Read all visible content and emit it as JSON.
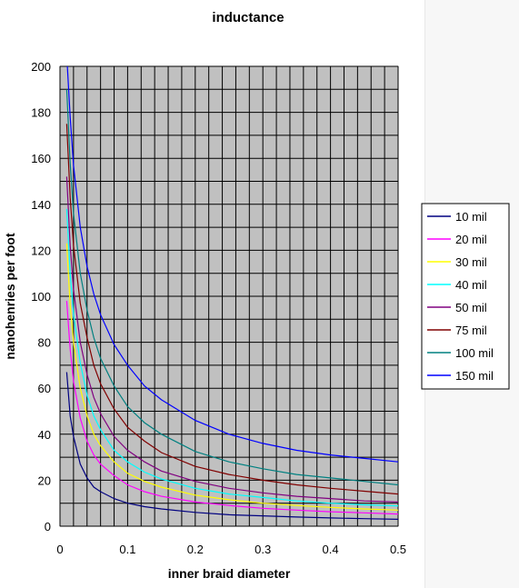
{
  "chart_data": {
    "type": "line",
    "title": "inductance",
    "xlabel": "inner braid diameter",
    "ylabel": "nanohenries per foot",
    "xlim": [
      0,
      0.5
    ],
    "ylim": [
      0,
      200
    ],
    "x_ticks": [
      "0",
      "0.1",
      "0.2",
      "0.3",
      "0.4",
      "0.5"
    ],
    "y_ticks": [
      "0",
      "20",
      "40",
      "60",
      "80",
      "100",
      "120",
      "140",
      "160",
      "180",
      "200"
    ],
    "grid": true,
    "plot_background": "#c0c0c0",
    "legend_position": "right",
    "x": [
      0.01,
      0.015,
      0.02,
      0.03,
      0.04,
      0.05,
      0.06,
      0.08,
      0.1,
      0.125,
      0.15,
      0.2,
      0.25,
      0.3,
      0.35,
      0.4,
      0.45,
      0.5
    ],
    "series": [
      {
        "name": "10 mil",
        "color": "#000080",
        "values": [
          67,
          48,
          39,
          27,
          21,
          17,
          15,
          12,
          10,
          8.5,
          7.5,
          6,
          5,
          4.5,
          4,
          3.6,
          3.3,
          3
        ]
      },
      {
        "name": "20 mil",
        "color": "#ff00ff",
        "values": [
          98,
          77,
          63,
          47,
          37,
          31,
          27,
          22,
          18,
          15,
          13,
          10.5,
          9,
          7.8,
          7,
          6.3,
          5.8,
          5.3
        ]
      },
      {
        "name": "30 mil",
        "color": "#ffff00",
        "values": [
          123,
          96,
          80,
          60,
          48,
          40,
          35,
          28,
          23,
          19.5,
          17,
          13.5,
          11.5,
          10,
          9,
          8.2,
          7.5,
          7
        ]
      },
      {
        "name": "40 mil",
        "color": "#00ffff",
        "values": [
          138,
          110,
          92,
          71,
          57,
          48,
          42,
          33,
          28,
          23.5,
          20.5,
          16.5,
          14,
          12.5,
          11,
          10,
          9.3,
          8.8
        ]
      },
      {
        "name": "50 mil",
        "color": "#800080",
        "values": [
          152,
          122,
          103,
          80,
          66,
          56,
          49,
          39,
          33,
          28,
          24,
          19.5,
          16.5,
          14.5,
          13,
          12,
          11,
          10.5
        ]
      },
      {
        "name": "75 mil",
        "color": "#800000",
        "values": [
          175,
          143,
          122,
          97,
          82,
          70,
          62,
          51,
          43,
          37,
          32,
          26,
          22.5,
          20,
          18,
          16.5,
          15.2,
          14
        ]
      },
      {
        "name": "100 mil",
        "color": "#008080",
        "values": [
          190,
          158,
          136,
          110,
          94,
          82,
          73,
          61,
          52,
          45,
          40,
          32.5,
          28,
          25,
          22.5,
          21,
          19.5,
          18
        ]
      },
      {
        "name": "150 mil",
        "color": "#0000ff",
        "values": [
          205,
          178,
          157,
          130,
          113,
          101,
          92,
          79,
          70,
          61,
          55,
          46,
          40,
          36,
          33,
          31,
          29.5,
          28
        ]
      }
    ]
  }
}
